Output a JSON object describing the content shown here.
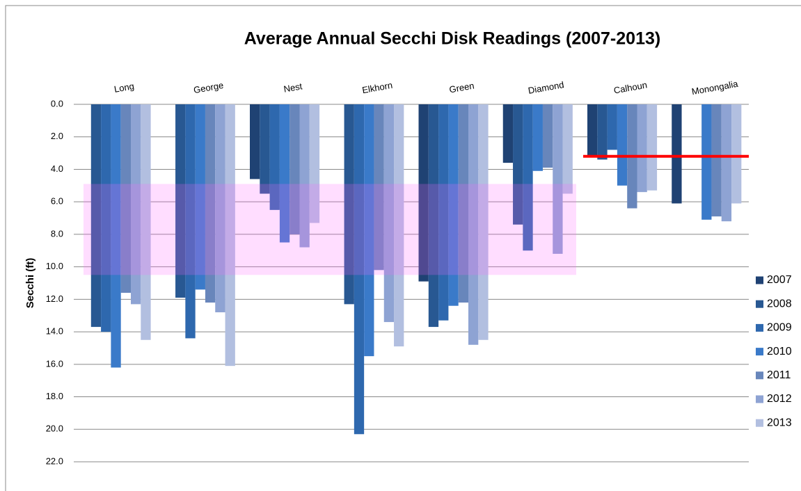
{
  "chart_data": {
    "type": "bar",
    "title": "Average Annual Secchi Disk Readings (2007-2013)",
    "y_label": "Secchi (ft)",
    "y_reversed": true,
    "categories": [
      "Long",
      "George",
      "Nest",
      "Elkhorn",
      "Green",
      "Diamond",
      "Calhoun",
      "Monongalia"
    ],
    "series": [
      {
        "name": "2007",
        "color": "#1f4273",
        "values": [
          null,
          null,
          4.6,
          null,
          10.9,
          3.6,
          3.2,
          6.1
        ]
      },
      {
        "name": "2008",
        "color": "#285892",
        "values": [
          13.7,
          11.9,
          5.5,
          12.3,
          13.7,
          7.4,
          3.4,
          null
        ]
      },
      {
        "name": "2009",
        "color": "#2e68ae",
        "values": [
          14.0,
          14.4,
          6.5,
          20.3,
          13.3,
          9.0,
          2.8,
          null
        ]
      },
      {
        "name": "2010",
        "color": "#3a7ac9",
        "values": [
          16.2,
          11.4,
          8.5,
          15.5,
          12.4,
          4.1,
          5.0,
          7.1
        ]
      },
      {
        "name": "2011",
        "color": "#6886bb",
        "values": [
          11.6,
          12.2,
          8.0,
          10.2,
          12.2,
          3.9,
          6.4,
          6.9
        ]
      },
      {
        "name": "2012",
        "color": "#8ea3d3",
        "values": [
          12.3,
          12.8,
          8.8,
          13.4,
          14.8,
          9.2,
          5.4,
          7.2
        ]
      },
      {
        "name": "2013",
        "color": "#b2bfe0",
        "values": [
          14.5,
          16.1,
          7.3,
          14.9,
          14.5,
          5.5,
          5.3,
          6.1
        ]
      }
    ],
    "ylim": [
      0,
      22
    ],
    "yticks": [
      {
        "value": 0,
        "label": "0.0"
      },
      {
        "value": 2,
        "label": "2.0"
      },
      {
        "value": 4,
        "label": "4.0"
      },
      {
        "value": 6,
        "label": "6.0"
      },
      {
        "value": 8,
        "label": "8.0"
      },
      {
        "value": 10,
        "label": "10.0"
      },
      {
        "value": 12,
        "label": "12.0"
      },
      {
        "value": 14,
        "label": "14.0"
      },
      {
        "value": 16,
        "label": "16.0"
      },
      {
        "value": 18,
        "label": "18.0"
      },
      {
        "value": 20,
        "label": "20.0"
      },
      {
        "value": 22,
        "label": "22.0"
      }
    ],
    "grid": true,
    "shaded_range": {
      "from": 4.9,
      "to": 10.5,
      "color": "#ff66ff"
    },
    "reference_line": {
      "value": 3.2,
      "color": "#ff0000"
    },
    "legend": "right"
  }
}
